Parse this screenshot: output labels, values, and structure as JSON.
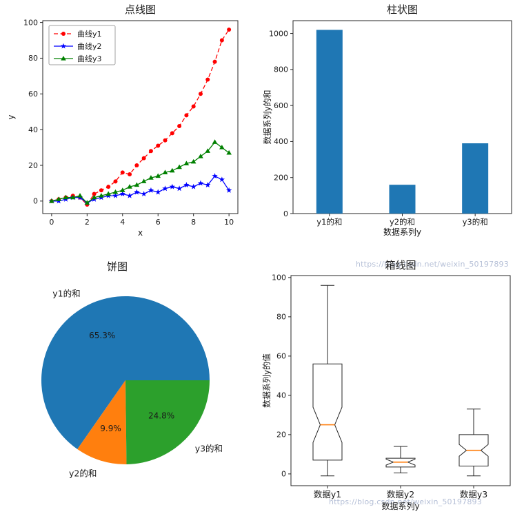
{
  "figure": {
    "background": "#ffffff"
  },
  "watermark": {
    "text": "https://blog.csdn.net/weixin_50197893",
    "color": "#b6c0d7"
  },
  "chart_data": [
    {
      "type": "line",
      "title": "点线图",
      "xlabel": "x",
      "ylabel": "y",
      "xlim": [
        -0.5,
        10.5
      ],
      "ylim": [
        -7,
        101
      ],
      "xticks": [
        0,
        2,
        4,
        6,
        8,
        10
      ],
      "yticks": [
        0,
        20,
        40,
        60,
        80,
        100
      ],
      "legend_position": "upper left",
      "x": [
        0,
        0.4,
        0.8,
        1.2,
        1.6,
        2,
        2.4,
        2.8,
        3.2,
        3.6,
        4,
        4.4,
        4.8,
        5.2,
        5.6,
        6,
        6.4,
        6.8,
        7.2,
        7.6,
        8,
        8.4,
        8.8,
        9.2,
        9.6,
        10
      ],
      "series": [
        {
          "name": "曲线y1",
          "color": "#ff0000",
          "linestyle": "dashed",
          "marker": "circle",
          "values": [
            0,
            1,
            2,
            3,
            2,
            -2,
            4,
            6,
            8,
            11,
            16,
            15,
            20,
            24,
            28,
            31,
            34,
            38,
            42,
            48,
            53,
            60,
            68,
            78,
            90,
            96
          ]
        },
        {
          "name": "曲线y2",
          "color": "#0000ff",
          "linestyle": "solid",
          "marker": "star",
          "values": [
            0,
            0,
            1,
            2,
            2,
            -1,
            1,
            2,
            3,
            3,
            4,
            3,
            5,
            4,
            6,
            5,
            7,
            8,
            7,
            9,
            8,
            10,
            9,
            14,
            12,
            6
          ]
        },
        {
          "name": "曲线y3",
          "color": "#008000",
          "linestyle": "solid",
          "marker": "triangle-up",
          "values": [
            0,
            1,
            2,
            2,
            3,
            -1,
            2,
            3,
            4,
            5,
            6,
            8,
            9,
            11,
            13,
            14,
            16,
            17,
            19,
            21,
            22,
            25,
            28,
            33,
            30,
            27
          ]
        }
      ]
    },
    {
      "type": "bar",
      "title": "柱状图",
      "xlabel": "数据系列y",
      "ylabel": "数据系列y的和",
      "categories": [
        "y1的和",
        "y2的和",
        "y3的和"
      ],
      "values": [
        1020,
        160,
        390
      ],
      "color": "#1f77b4",
      "ylim": [
        0,
        1071
      ],
      "yticks": [
        0,
        200,
        400,
        600,
        800,
        1000
      ]
    },
    {
      "type": "pie",
      "title": "饼图",
      "labels": [
        "y1的和",
        "y2的和",
        "y3的和"
      ],
      "values": [
        65.3,
        9.9,
        24.8
      ],
      "pct_labels": [
        "65.3%",
        "9.9%",
        "24.8%"
      ],
      "colors": [
        "#1f77b4",
        "#ff7f0e",
        "#2ca02c"
      ],
      "start_angle": 0,
      "counterclockwise": true
    },
    {
      "type": "box",
      "title": "箱线图",
      "xlabel": "数据系列y",
      "ylabel": "数据系列y的值",
      "categories": [
        "数据y1",
        "数据y2",
        "数据y3"
      ],
      "ylim": [
        -6,
        101
      ],
      "yticks": [
        0,
        20,
        40,
        60,
        80,
        100
      ],
      "median_color": "#ff7f0e",
      "boxes": [
        {
          "label": "数据y1",
          "whislo": -1,
          "q1": 7,
          "med": 25,
          "q3": 56,
          "whishi": 96,
          "notch_lo": 16,
          "notch_hi": 34
        },
        {
          "label": "数据y2",
          "whislo": 0.5,
          "q1": 3.5,
          "med": 6,
          "q3": 8,
          "whishi": 14,
          "notch_lo": 4.5,
          "notch_hi": 7.5
        },
        {
          "label": "数据y3",
          "whislo": -1,
          "q1": 4,
          "med": 12,
          "q3": 20,
          "whishi": 33,
          "notch_lo": 9,
          "notch_hi": 15
        }
      ]
    }
  ]
}
